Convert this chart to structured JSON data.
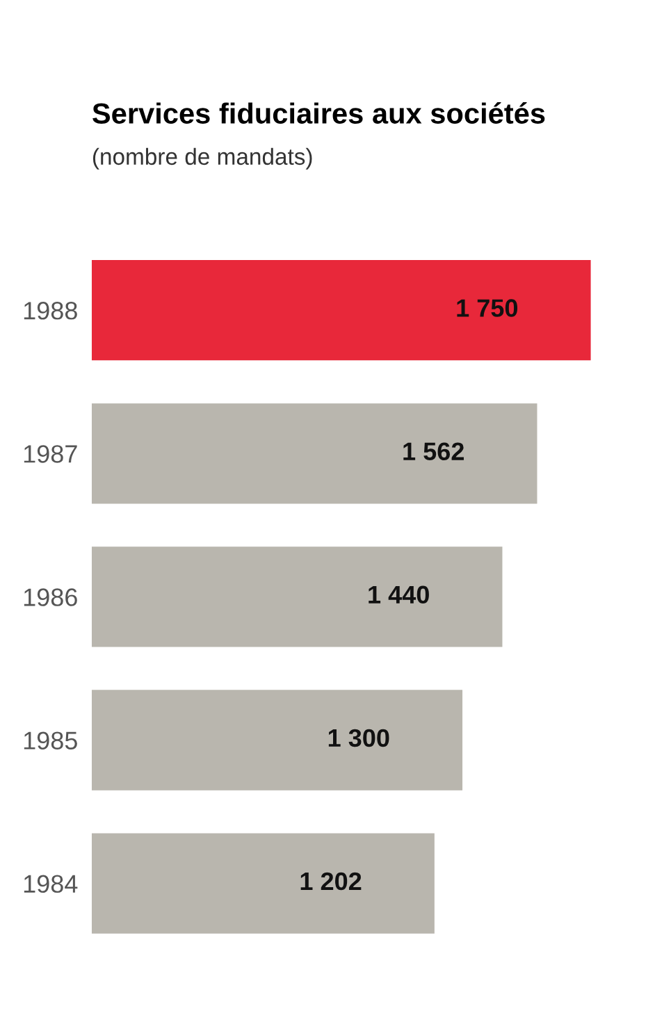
{
  "chart_data": {
    "type": "bar",
    "orientation": "horizontal",
    "title": "Services fiduciaires aux sociétés",
    "subtitle": "(nombre de mandats)",
    "categories": [
      "1988",
      "1987",
      "1986",
      "1985",
      "1984"
    ],
    "values": [
      1750,
      1562,
      1440,
      1300,
      1202
    ],
    "value_labels": [
      "1 750",
      "1 562",
      "1 440",
      "1 300",
      "1 202"
    ],
    "colors": [
      "#e8283a",
      "#b9b6ae",
      "#b9b6ae",
      "#b9b6ae",
      "#b9b6ae"
    ],
    "tick_labels": "y",
    "grid": false,
    "legend": false
  }
}
